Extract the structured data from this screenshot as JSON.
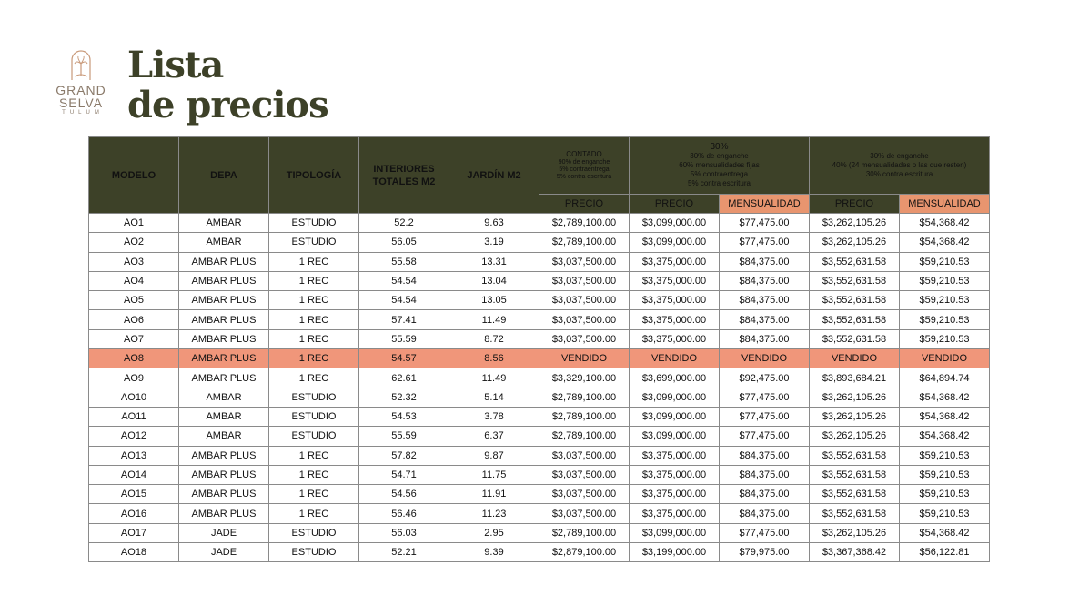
{
  "logo": {
    "line1": "GRAND",
    "line2": "SELVA",
    "line3": "TULUM"
  },
  "title": {
    "line1": "Lista",
    "line2": "de precios"
  },
  "headers": {
    "modelo": "MODELO",
    "depa": "DEPA",
    "tipologia": "TIPOLOGÍA",
    "interiores_1": "INTERIORES",
    "interiores_2": "TOTALES M2",
    "jardin": "JARDÍN M2",
    "contado": {
      "title": "CONTADO",
      "lines": [
        "90% de enganche",
        "5% contraentrega",
        "5% contra escritura"
      ]
    },
    "plan30": {
      "title": "30%",
      "lines": [
        "30% de enganche",
        "60% mensualidades fijas",
        "5% contraentrega",
        "5% contra escritura"
      ]
    },
    "plan40": {
      "title": "",
      "lines": [
        "30% de enganche",
        "40% (24 mensualidades o las que resten)",
        "30% contra escritura"
      ]
    },
    "precio": "PRECIO",
    "mensualidad": "MENSUALIDAD"
  },
  "rows": [
    [
      "AO1",
      "AMBAR",
      "ESTUDIO",
      "52.2",
      "9.63",
      "$2,789,100.00",
      "$3,099,000.00",
      "$77,475.00",
      "$3,262,105.26",
      "$54,368.42"
    ],
    [
      "AO2",
      "AMBAR",
      "ESTUDIO",
      "56.05",
      "3.19",
      "$2,789,100.00",
      "$3,099,000.00",
      "$77,475.00",
      "$3,262,105.26",
      "$54,368.42"
    ],
    [
      "AO3",
      "AMBAR PLUS",
      "1 REC",
      "55.58",
      "13.31",
      "$3,037,500.00",
      "$3,375,000.00",
      "$84,375.00",
      "$3,552,631.58",
      "$59,210.53"
    ],
    [
      "AO4",
      "AMBAR PLUS",
      "1 REC",
      "54.54",
      "13.04",
      "$3,037,500.00",
      "$3,375,000.00",
      "$84,375.00",
      "$3,552,631.58",
      "$59,210.53"
    ],
    [
      "AO5",
      "AMBAR PLUS",
      "1 REC",
      "54.54",
      "13.05",
      "$3,037,500.00",
      "$3,375,000.00",
      "$84,375.00",
      "$3,552,631.58",
      "$59,210.53"
    ],
    [
      "AO6",
      "AMBAR PLUS",
      "1 REC",
      "57.41",
      "11.49",
      "$3,037,500.00",
      "$3,375,000.00",
      "$84,375.00",
      "$3,552,631.58",
      "$59,210.53"
    ],
    [
      "AO7",
      "AMBAR PLUS",
      "1 REC",
      "55.59",
      "8.72",
      "$3,037,500.00",
      "$3,375,000.00",
      "$84,375.00",
      "$3,552,631.58",
      "$59,210.53"
    ],
    [
      "AO8",
      "AMBAR PLUS",
      "1 REC",
      "54.57",
      "8.56",
      "VENDIDO",
      "VENDIDO",
      "VENDIDO",
      "VENDIDO",
      "VENDIDO"
    ],
    [
      "AO9",
      "AMBAR PLUS",
      "1 REC",
      "62.61",
      "11.49",
      "$3,329,100.00",
      "$3,699,000.00",
      "$92,475.00",
      "$3,893,684.21",
      "$64,894.74"
    ],
    [
      "AO10",
      "AMBAR",
      "ESTUDIO",
      "52.32",
      "5.14",
      "$2,789,100.00",
      "$3,099,000.00",
      "$77,475.00",
      "$3,262,105.26",
      "$54,368.42"
    ],
    [
      "AO11",
      "AMBAR",
      "ESTUDIO",
      "54.53",
      "3.78",
      "$2,789,100.00",
      "$3,099,000.00",
      "$77,475.00",
      "$3,262,105.26",
      "$54,368.42"
    ],
    [
      "AO12",
      "AMBAR",
      "ESTUDIO",
      "55.59",
      "6.37",
      "$2,789,100.00",
      "$3,099,000.00",
      "$77,475.00",
      "$3,262,105.26",
      "$54,368.42"
    ],
    [
      "AO13",
      "AMBAR PLUS",
      "1 REC",
      "57.82",
      "9.87",
      "$3,037,500.00",
      "$3,375,000.00",
      "$84,375.00",
      "$3,552,631.58",
      "$59,210.53"
    ],
    [
      "AO14",
      "AMBAR PLUS",
      "1 REC",
      "54.71",
      "11.75",
      "$3,037,500.00",
      "$3,375,000.00",
      "$84,375.00",
      "$3,552,631.58",
      "$59,210.53"
    ],
    [
      "AO15",
      "AMBAR PLUS",
      "1 REC",
      "54.56",
      "11.91",
      "$3,037,500.00",
      "$3,375,000.00",
      "$84,375.00",
      "$3,552,631.58",
      "$59,210.53"
    ],
    [
      "AO16",
      "AMBAR PLUS",
      "1 REC",
      "56.46",
      "11.23",
      "$3,037,500.00",
      "$3,375,000.00",
      "$84,375.00",
      "$3,552,631.58",
      "$59,210.53"
    ],
    [
      "AO17",
      "JADE",
      "ESTUDIO",
      "56.03",
      "2.95",
      "$2,789,100.00",
      "$3,099,000.00",
      "$77,475.00",
      "$3,262,105.26",
      "$54,368.42"
    ],
    [
      "AO18",
      "JADE",
      "ESTUDIO",
      "52.21",
      "9.39",
      "$2,879,100.00",
      "$3,199,000.00",
      "$79,975.00",
      "$3,367,368.42",
      "$56,122.81"
    ]
  ],
  "sold_label": "VENDIDO",
  "colors": {
    "olive": "#3d4128",
    "salmon": "#e8956f",
    "sold_row": "#f0967a"
  }
}
